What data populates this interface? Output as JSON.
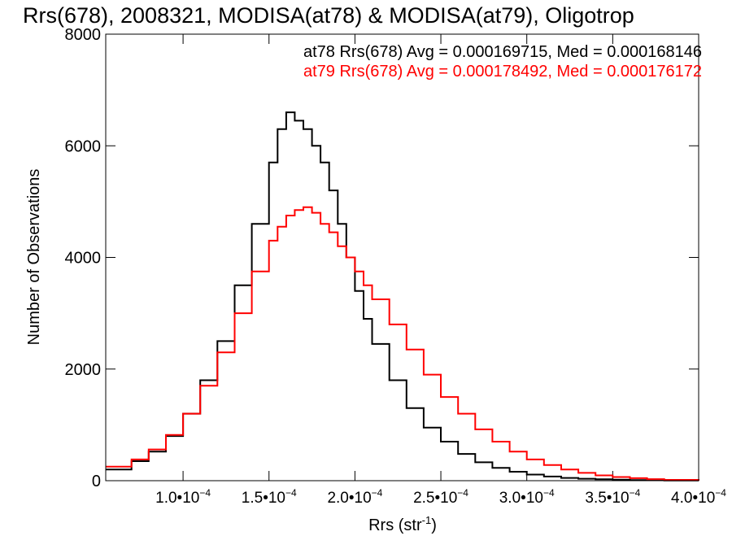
{
  "chart_data": {
    "type": "line",
    "title": "Rrs(678), 2008321, MODISA(at78) & MODISA(at79), Oligotrop",
    "xlabel": "Rrs (str",
    "xlabel_sup": "-1",
    "xlabel_close": ")",
    "ylabel": "Number of Observations",
    "xlim": [
      5.5e-05,
      0.0004
    ],
    "ylim": [
      0,
      8000
    ],
    "x_ticks": [
      0.0001,
      0.00015,
      0.0002,
      0.00025,
      0.0003,
      0.00035,
      0.0004
    ],
    "x_tick_labels": [
      {
        "mant": "1.0",
        "base": "10",
        "exp": "-4"
      },
      {
        "mant": "1.5",
        "base": "10",
        "exp": "-4"
      },
      {
        "mant": "2.0",
        "base": "10",
        "exp": "-4"
      },
      {
        "mant": "2.5",
        "base": "10",
        "exp": "-4"
      },
      {
        "mant": "3.0",
        "base": "10",
        "exp": "-4"
      },
      {
        "mant": "3.5",
        "base": "10",
        "exp": "-4"
      },
      {
        "mant": "4.0",
        "base": "10",
        "exp": "-4"
      }
    ],
    "y_ticks": [
      0,
      2000,
      4000,
      6000,
      8000
    ],
    "y_tick_labels": [
      "0",
      "2000",
      "4000",
      "6000",
      "8000"
    ],
    "grid": false,
    "series": [
      {
        "name": "at78",
        "color": "#000000",
        "annotation": "at78 Rrs(678) Avg = 0.000169715, Med = 0.000168146",
        "x": [
          5.5e-05,
          7e-05,
          8e-05,
          9e-05,
          0.0001,
          0.00011,
          0.00012,
          0.00013,
          0.00014,
          0.00015,
          0.000155,
          0.00016,
          0.000165,
          0.00017,
          0.000175,
          0.00018,
          0.000185,
          0.00019,
          0.000195,
          0.0002,
          0.000205,
          0.00021,
          0.00022,
          0.00023,
          0.00024,
          0.00025,
          0.00026,
          0.00027,
          0.00028,
          0.00029,
          0.0003,
          0.00031,
          0.00032,
          0.00033,
          0.00034,
          0.00035,
          0.00036,
          0.00037,
          0.00038,
          0.0004
        ],
        "y": [
          200,
          350,
          520,
          800,
          1200,
          1800,
          2500,
          3500,
          4600,
          5700,
          6300,
          6600,
          6450,
          6300,
          6000,
          5700,
          5200,
          4600,
          4000,
          3400,
          2900,
          2450,
          1800,
          1300,
          950,
          700,
          480,
          330,
          230,
          160,
          110,
          75,
          50,
          35,
          25,
          18,
          12,
          8,
          5,
          0
        ]
      },
      {
        "name": "at79",
        "color": "#ff0000",
        "annotation": "at79 Rrs(678) Avg = 0.000178492, Med = 0.000176172",
        "x": [
          5.5e-05,
          7e-05,
          8e-05,
          9e-05,
          0.0001,
          0.00011,
          0.00012,
          0.00013,
          0.00014,
          0.00015,
          0.000155,
          0.00016,
          0.000165,
          0.00017,
          0.000175,
          0.00018,
          0.000185,
          0.00019,
          0.000195,
          0.0002,
          0.000205,
          0.00021,
          0.00022,
          0.00023,
          0.00024,
          0.00025,
          0.00026,
          0.00027,
          0.00028,
          0.00029,
          0.0003,
          0.00031,
          0.00032,
          0.00033,
          0.00034,
          0.00035,
          0.00036,
          0.00037,
          0.00038,
          0.0004
        ],
        "y": [
          250,
          380,
          560,
          820,
          1200,
          1700,
          2300,
          3000,
          3750,
          4300,
          4550,
          4750,
          4850,
          4900,
          4800,
          4600,
          4450,
          4200,
          4000,
          3750,
          3500,
          3250,
          2800,
          2350,
          1900,
          1500,
          1200,
          920,
          700,
          520,
          380,
          280,
          200,
          140,
          95,
          65,
          45,
          28,
          15,
          0
        ]
      }
    ]
  }
}
